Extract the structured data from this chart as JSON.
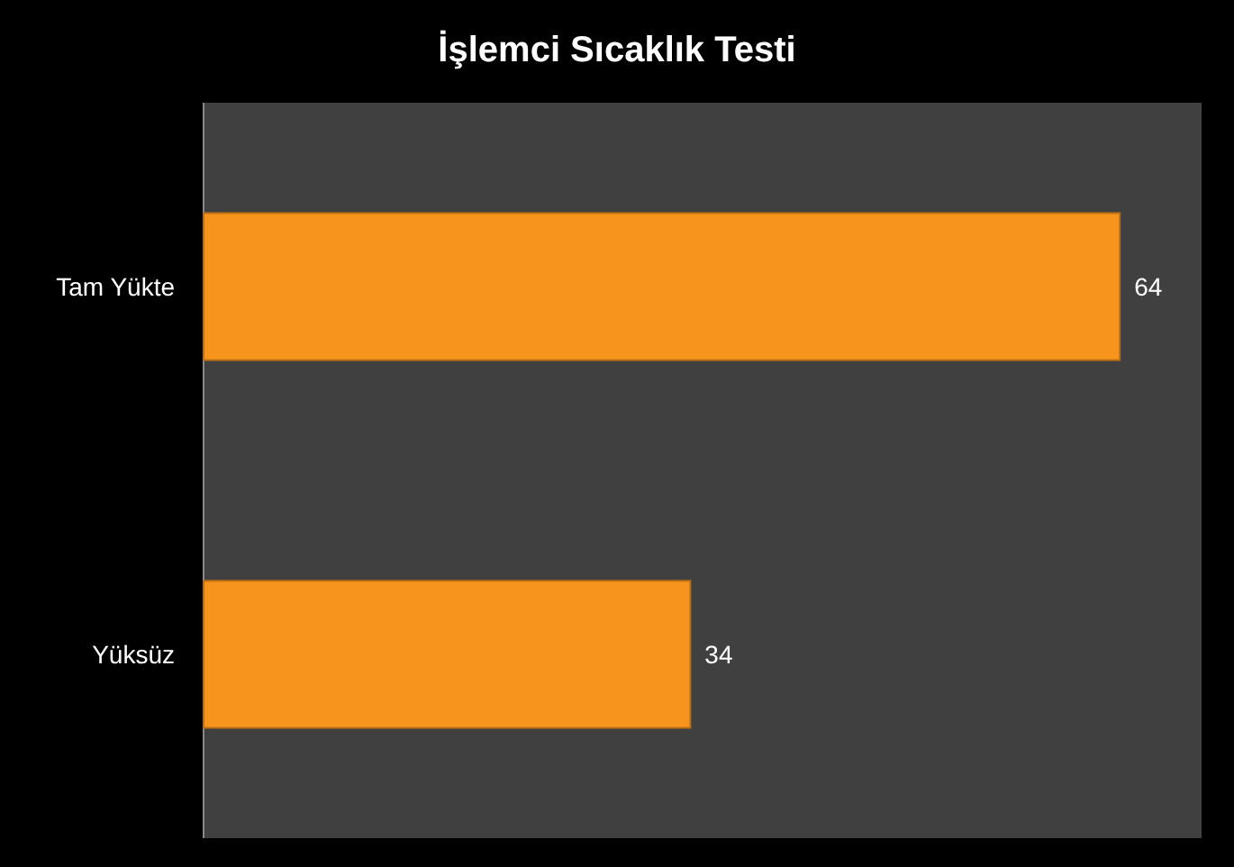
{
  "chart_data": {
    "type": "bar",
    "orientation": "horizontal",
    "title": "İşlemci Sıcaklık Testi",
    "categories": [
      "Tam Yükte",
      "Yüksüz"
    ],
    "values": [
      64,
      34
    ],
    "color": "#f7941d",
    "data_labels": true,
    "grid": false
  }
}
